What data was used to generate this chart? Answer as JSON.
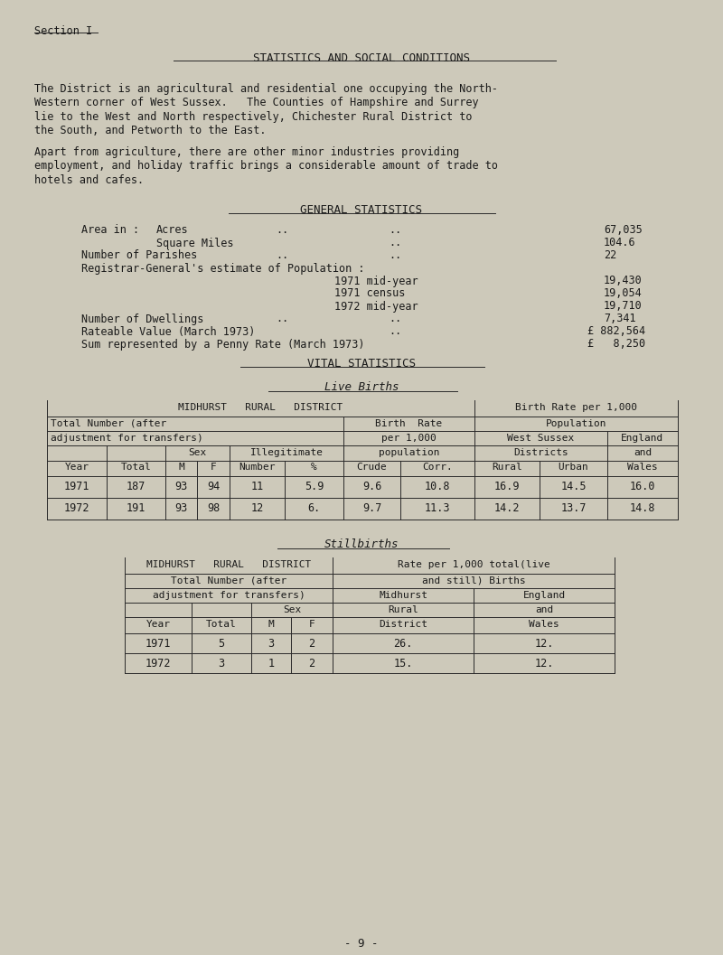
{
  "bg_color": "#cdc9ba",
  "text_color": "#1a1a1a",
  "section_label": "Section I",
  "main_title": "STATISTICS AND SOCIAL CONDITIONS",
  "para1_lines": [
    "The District is an agricultural and residential one occupying the North-",
    "Western corner of West Sussex.   The Counties of Hampshire and Surrey",
    "lie to the West and North respectively, Chichester Rural District to",
    "the South, and Petworth to the East."
  ],
  "para2_lines": [
    "Apart from agriculture, there are other minor industries providing",
    "employment, and holiday traffic brings a considerable amount of trade to",
    "hotels and cafes."
  ],
  "gen_stats_title": "GENERAL STATISTICS",
  "vital_stats_title": "VITAL STATISTICS",
  "live_births_title": "Live Births",
  "stillbirths_title": "Stillbirths",
  "page_number": "-  9  -",
  "lb_data": [
    [
      "1971",
      "187",
      "93",
      "94",
      "11",
      "5.9",
      "9.6",
      "10.8",
      "16.9",
      "14.5",
      "16.0"
    ],
    [
      "1972",
      "191",
      "93",
      "98",
      "12",
      "6.",
      "9.7",
      "11.3",
      "14.2",
      "13.7",
      "14.8"
    ]
  ],
  "sb_data": [
    [
      "1971",
      "5",
      "3",
      "2",
      "26.",
      "12."
    ],
    [
      "1972",
      "3",
      "1",
      "2",
      "15.",
      "12."
    ]
  ]
}
